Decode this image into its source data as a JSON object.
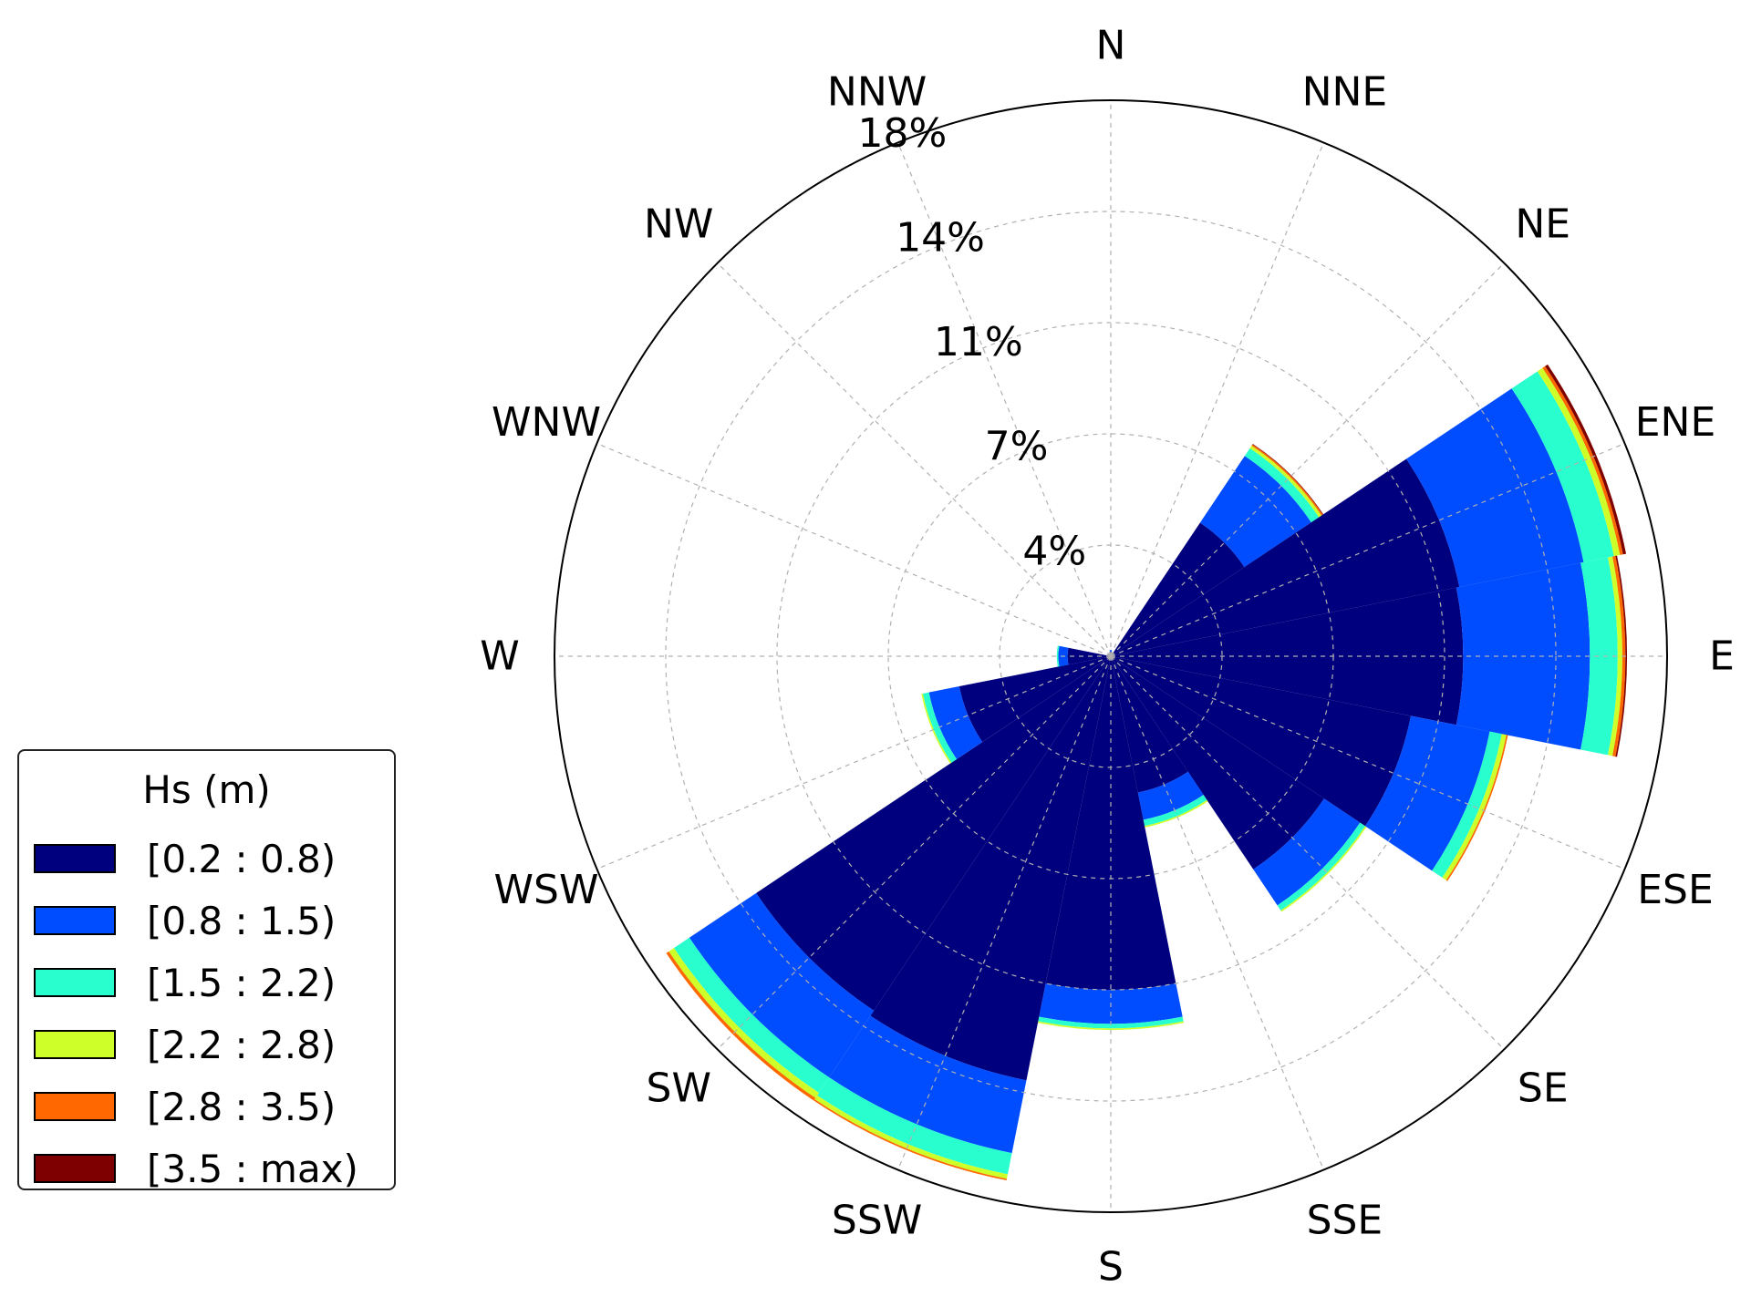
{
  "chart_data": {
    "type": "polar-stacked-bar",
    "legend": {
      "title": "Hs (m)",
      "placement": "lower-left",
      "bins": [
        {
          "label": "[0.2 : 0.8)",
          "color": "#00007f"
        },
        {
          "label": "[0.8 : 1.5)",
          "color": "#004cff"
        },
        {
          "label": "[1.5 : 2.2)",
          "color": "#29ffce"
        },
        {
          "label": "[2.2 : 2.8)",
          "color": "#ceff29"
        },
        {
          "label": "[2.8 : 3.5)",
          "color": "#ff6800"
        },
        {
          "label": "[3.5 : max)",
          "color": "#7f0000"
        }
      ]
    },
    "directions": [
      "N",
      "NNE",
      "NE",
      "ENE",
      "E",
      "ESE",
      "SE",
      "SSE",
      "S",
      "SSW",
      "SW",
      "WSW",
      "W",
      "WNW",
      "NW",
      "NNW"
    ],
    "radial_ticks": [
      {
        "value": 3.6,
        "label": "4%"
      },
      {
        "value": 7.2,
        "label": "7%"
      },
      {
        "value": 10.8,
        "label": "11%"
      },
      {
        "value": 14.4,
        "label": "14%"
      },
      {
        "value": 18.0,
        "label": "18%"
      }
    ],
    "rmax": 18.0,
    "grid": true,
    "series_values": [
      [
        0.15,
        0.05,
        0,
        0,
        0,
        0
      ],
      [
        0.05,
        0.02,
        0,
        0,
        0,
        0
      ],
      [
        5.2,
        2.6,
        0.3,
        0.1,
        0.05,
        0.02
      ],
      [
        11.5,
        4.1,
        1.0,
        0.2,
        0.1,
        0.1
      ],
      [
        11.4,
        4.1,
        0.9,
        0.15,
        0.1,
        0.05
      ],
      [
        9.9,
        2.6,
        0.4,
        0.15,
        0.05,
        0
      ],
      [
        8.3,
        1.4,
        0.2,
        0.05,
        0,
        0
      ],
      [
        4.5,
        0.9,
        0.2,
        0.05,
        0,
        0
      ],
      [
        10.8,
        1.1,
        0.15,
        0.05,
        0,
        0
      ],
      [
        14.0,
        2.4,
        0.7,
        0.15,
        0.05,
        0
      ],
      [
        13.8,
        2.6,
        0.6,
        0.2,
        0.1,
        0
      ],
      [
        5.0,
        1.0,
        0.2,
        0.05,
        0,
        0
      ],
      [
        1.4,
        0.3,
        0.05,
        0,
        0,
        0
      ],
      [
        0.1,
        0.02,
        0,
        0,
        0,
        0
      ],
      [
        0.05,
        0.02,
        0,
        0,
        0,
        0
      ],
      [
        0.05,
        0.02,
        0,
        0,
        0,
        0
      ]
    ]
  }
}
